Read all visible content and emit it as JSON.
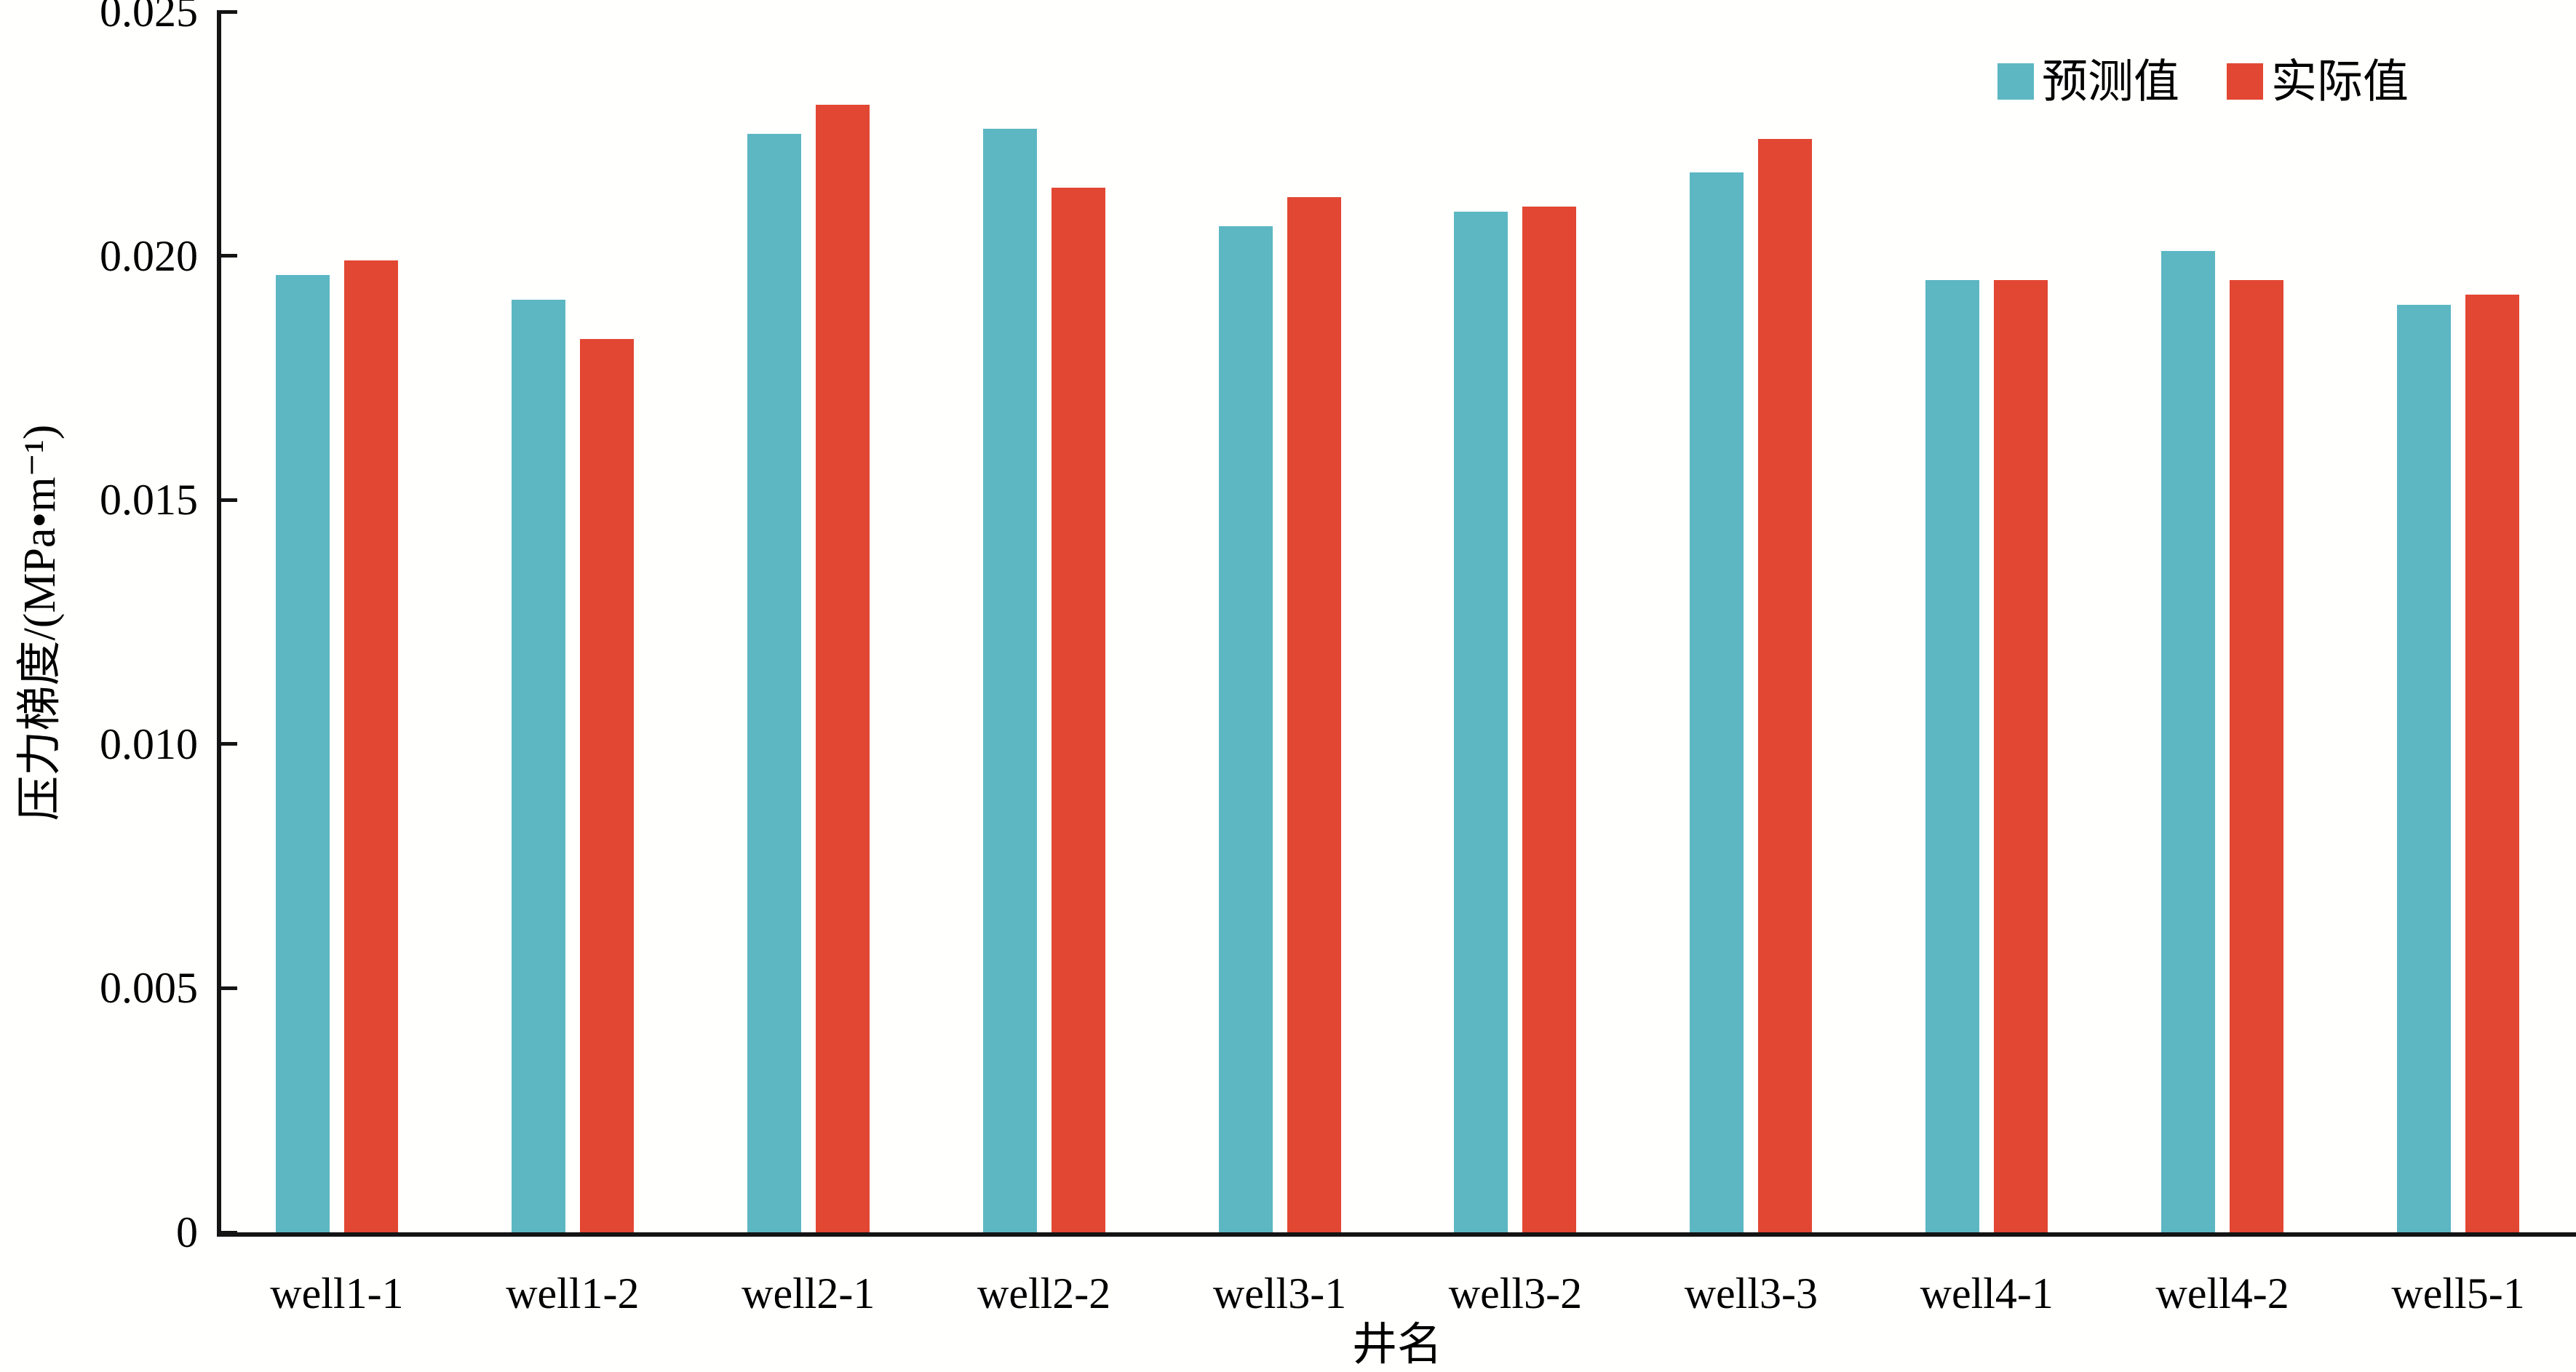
{
  "chart_data": {
    "type": "bar",
    "title": "",
    "xlabel": "井名",
    "ylabel": "压力梯度/(MPa•m⁻¹)",
    "categories": [
      "well1-1",
      "well1-2",
      "well2-1",
      "well2-2",
      "well3-1",
      "well3-2",
      "well3-3",
      "well4-1",
      "well4-2",
      "well5-1"
    ],
    "series": [
      {
        "name": "预测值",
        "color": "#5CB7C3",
        "values": [
          0.0196,
          0.0191,
          0.0225,
          0.0226,
          0.0206,
          0.0209,
          0.0217,
          0.0195,
          0.0201,
          0.019
        ]
      },
      {
        "name": "实际值",
        "color": "#E24733",
        "values": [
          0.0199,
          0.0183,
          0.0231,
          0.0214,
          0.0212,
          0.021,
          0.0224,
          0.0195,
          0.0195,
          0.0192
        ]
      }
    ],
    "ylim": [
      0,
      0.025
    ],
    "yticks": [
      {
        "value": 0.0,
        "label": "0"
      },
      {
        "value": 0.005,
        "label": "0.005"
      },
      {
        "value": 0.01,
        "label": "0.010"
      },
      {
        "value": 0.015,
        "label": "0.015"
      },
      {
        "value": 0.02,
        "label": "0.020"
      },
      {
        "value": 0.025,
        "label": "0.025"
      }
    ],
    "grid": false,
    "legend_position": "top-right",
    "axis_color": "#141414",
    "background_color": "#fffffe"
  }
}
